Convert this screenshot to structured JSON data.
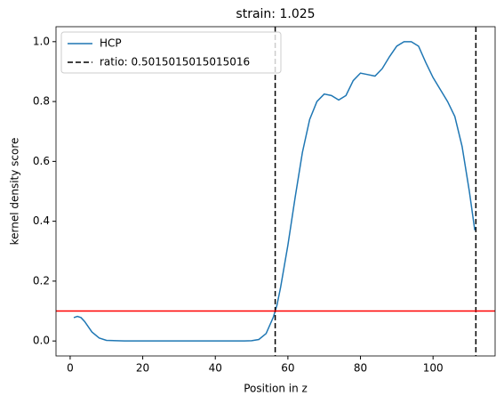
{
  "chart_data": {
    "type": "line",
    "title": "strain: 1.025",
    "x_label": "Position in z",
    "y_label": "kernel density score",
    "series": [
      {
        "name": "HCP",
        "color": "#1f77b4",
        "x": [
          1,
          2,
          3,
          4,
          6,
          8,
          10,
          15,
          20,
          30,
          40,
          48,
          50,
          52,
          54,
          56,
          57,
          58,
          60,
          62,
          64,
          66,
          68,
          70,
          72,
          74,
          76,
          78,
          80,
          82,
          84,
          86,
          88,
          90,
          92,
          94,
          96,
          98,
          100,
          102,
          104,
          106,
          108,
          110,
          111.5
        ],
        "values": [
          0.078,
          0.082,
          0.078,
          0.065,
          0.03,
          0.01,
          0.002,
          0,
          0,
          0,
          0,
          0,
          0.001,
          0.005,
          0.025,
          0.08,
          0.12,
          0.18,
          0.32,
          0.48,
          0.63,
          0.74,
          0.8,
          0.825,
          0.82,
          0.805,
          0.82,
          0.87,
          0.895,
          0.89,
          0.885,
          0.91,
          0.95,
          0.985,
          1.0,
          1.0,
          0.985,
          0.93,
          0.88,
          0.84,
          0.8,
          0.75,
          0.65,
          0.5,
          0.37
        ]
      }
    ],
    "vlines": {
      "name": "ratio: 0.5015015015015016",
      "color": "#000000",
      "values": [
        56.5,
        111.8
      ]
    },
    "hline": {
      "value": 0.1,
      "color": "#ff0000"
    },
    "xlim": [
      -3.9,
      117.1
    ],
    "ylim": [
      -0.05,
      1.05
    ],
    "xticks": [
      0,
      20,
      40,
      60,
      80,
      100
    ],
    "yticks": [
      {
        "value": 0,
        "label": "0.0"
      },
      0.2,
      0.4,
      0.6,
      0.8,
      {
        "value": 1,
        "label": "1.0"
      }
    ],
    "legend": "upper left"
  }
}
